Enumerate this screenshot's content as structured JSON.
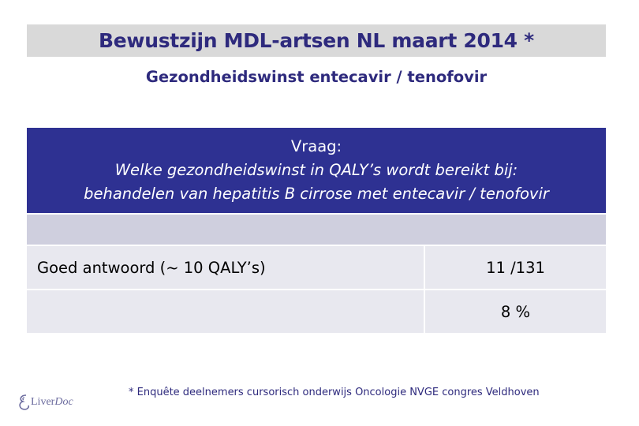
{
  "header": {
    "title": "Bewustzijn MDL-artsen NL maart 2014 *",
    "subtitle": "Gezondheidswinst entecavir / tenofovir"
  },
  "question": {
    "label": "Vraag:",
    "line1": "Welke gezondheidswinst in QALY’s wordt bereikt bij:",
    "line2": "behandelen van hepatitis B cirrose met entecavir / tenofovir"
  },
  "results": {
    "correct_label": "Goed antwoord (~ 10 QALY’s)",
    "count": "11 /131",
    "percent": "8 %"
  },
  "footnote": "* Enquête deelnemers cursorisch onderwijs Oncologie NVGE congres Veldhoven",
  "logo": {
    "part1": "Liver",
    "part2": "Doc",
    "icon": "liver-swirl-icon"
  },
  "colors": {
    "title_text": "#2e2a7d",
    "header_bg": "#2e3192",
    "title_bar_bg": "#d9d9d9",
    "row_bg": "#e8e8ef",
    "band_bg": "#cfcfde"
  }
}
